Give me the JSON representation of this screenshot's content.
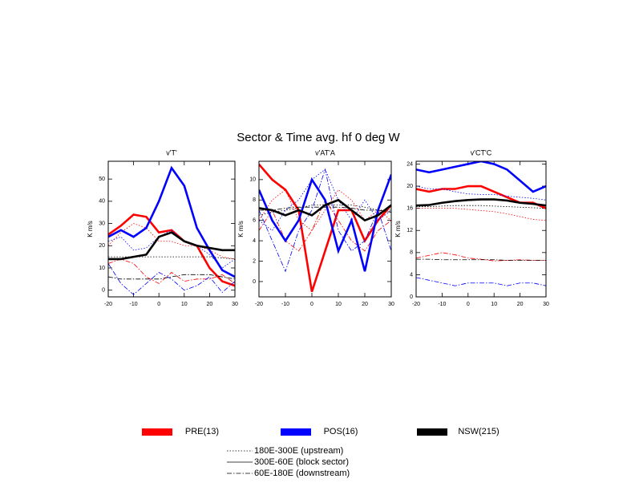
{
  "title": "Sector & Time avg. hf 0 deg W",
  "legend": {
    "groups": [
      {
        "name": "PRE(13)",
        "color": "#ff0000"
      },
      {
        "name": "POS(16)",
        "color": "#0000ff"
      },
      {
        "name": "NSW(215)",
        "color": "#000000"
      }
    ],
    "styles": [
      {
        "name": "180E-300E (upstream)",
        "dash": "dotted"
      },
      {
        "name": "300E-60E (block sector)",
        "dash": "solid"
      },
      {
        "name": "60E-180E (downstream)",
        "dash": "dashdot"
      }
    ]
  },
  "chart_data": [
    {
      "type": "line",
      "title": "v'T'",
      "ylabel": "K m/s",
      "x": [
        -20,
        -15,
        -10,
        -5,
        0,
        5,
        10,
        15,
        20,
        25,
        30
      ],
      "xlim": [
        -20,
        30
      ],
      "xticks": [
        -20,
        -10,
        0,
        10,
        20,
        30
      ],
      "ylim": [
        -3,
        58
      ],
      "yticks": [
        0,
        10,
        20,
        30,
        40,
        50
      ],
      "series": [
        {
          "name": "PRE(13)",
          "sector": "300E-60E (block sector)",
          "values": [
            25,
            29,
            34,
            33,
            26,
            27,
            22,
            20,
            10,
            4,
            2
          ]
        },
        {
          "name": "PRE(13)",
          "sector": "180E-300E (upstream)",
          "values": [
            20,
            26,
            30,
            28,
            22,
            22,
            20,
            20,
            18,
            15,
            14
          ]
        },
        {
          "name": "PRE(13)",
          "sector": "60E-180E (downstream)",
          "values": [
            12,
            14,
            12,
            6,
            3,
            8,
            4,
            5,
            5,
            7,
            3
          ]
        },
        {
          "name": "POS(16)",
          "sector": "300E-60E (block sector)",
          "values": [
            24,
            27,
            24,
            28,
            40,
            55,
            47,
            28,
            18,
            9,
            6
          ]
        },
        {
          "name": "POS(16)",
          "sector": "180E-300E (upstream)",
          "values": [
            22,
            24,
            18,
            19,
            24,
            27,
            22,
            20,
            16,
            10,
            14
          ]
        },
        {
          "name": "POS(16)",
          "sector": "60E-180E (downstream)",
          "values": [
            12,
            3,
            -2,
            3,
            8,
            5,
            0,
            2,
            6,
            -1,
            4
          ]
        },
        {
          "name": "NSW(215)",
          "sector": "300E-60E (block sector)",
          "values": [
            14,
            14,
            15,
            16,
            24,
            26,
            22,
            20,
            19,
            18,
            18
          ]
        },
        {
          "name": "NSW(215)",
          "sector": "180E-300E (upstream)",
          "values": [
            15,
            15,
            15,
            15,
            15,
            15,
            15,
            15,
            15,
            14.5,
            14
          ]
        },
        {
          "name": "NSW(215)",
          "sector": "60E-180E (downstream)",
          "values": [
            6,
            5,
            5,
            5,
            5,
            6,
            7,
            7,
            7,
            6,
            5
          ]
        }
      ]
    },
    {
      "type": "line",
      "title": "v'AT'A",
      "ylabel": "K m/s",
      "x": [
        -20,
        -15,
        -10,
        -5,
        0,
        5,
        10,
        15,
        20,
        25,
        30
      ],
      "xlim": [
        -20,
        30
      ],
      "xticks": [
        -20,
        -10,
        0,
        10,
        20,
        30
      ],
      "ylim": [
        -1.5,
        11.8
      ],
      "yticks": [
        0,
        2,
        4,
        6,
        8,
        10
      ],
      "series": [
        {
          "name": "PRE(13)",
          "sector": "300E-60E (block sector)",
          "values": [
            11.5,
            10,
            9,
            7,
            -1,
            3,
            7,
            7,
            4,
            6,
            7.5
          ]
        },
        {
          "name": "PRE(13)",
          "sector": "180E-300E (upstream)",
          "values": [
            6,
            8,
            9,
            6,
            5,
            7,
            9,
            8,
            6,
            7,
            6
          ]
        },
        {
          "name": "PRE(13)",
          "sector": "60E-180E (downstream)",
          "values": [
            5,
            7,
            4,
            3,
            5,
            8,
            6,
            4,
            3,
            5,
            6
          ]
        },
        {
          "name": "POS(16)",
          "sector": "300E-60E (block sector)",
          "values": [
            9,
            6,
            4,
            6,
            10,
            8,
            3,
            6,
            1,
            7,
            10.5
          ]
        },
        {
          "name": "POS(16)",
          "sector": "180E-300E (upstream)",
          "values": [
            6,
            5,
            7,
            8,
            10,
            11,
            8,
            6,
            8,
            6,
            7
          ]
        },
        {
          "name": "POS(16)",
          "sector": "60E-180E (downstream)",
          "values": [
            7,
            4,
            1,
            5,
            7,
            11,
            5,
            3,
            4,
            7,
            3
          ]
        },
        {
          "name": "NSW(215)",
          "sector": "300E-60E (block sector)",
          "values": [
            7.2,
            7,
            6.5,
            7,
            6.5,
            7.5,
            8,
            7,
            6,
            6.5,
            7.5
          ]
        },
        {
          "name": "NSW(215)",
          "sector": "180E-300E (upstream)",
          "values": [
            6.5,
            6.8,
            7,
            7.2,
            7.5,
            7.5,
            7.5,
            7.5,
            7.3,
            7,
            7
          ]
        },
        {
          "name": "NSW(215)",
          "sector": "60E-180E (downstream)",
          "values": [
            7,
            7,
            7.2,
            7.3,
            7.3,
            7.3,
            7.3,
            7.2,
            7,
            7,
            6.8
          ]
        }
      ]
    },
    {
      "type": "line",
      "title": "v'CT'C",
      "ylabel": "K m/s",
      "x": [
        -20,
        -15,
        -10,
        -5,
        0,
        5,
        10,
        15,
        20,
        25,
        30
      ],
      "xlim": [
        -20,
        30
      ],
      "xticks": [
        -20,
        -10,
        0,
        10,
        20,
        30
      ],
      "ylim": [
        0,
        24.5
      ],
      "yticks": [
        0,
        4,
        8,
        12,
        16,
        20,
        24
      ],
      "series": [
        {
          "name": "PRE(13)",
          "sector": "300E-60E (block sector)",
          "values": [
            19.5,
            19,
            19.5,
            19.5,
            20,
            20,
            19,
            18,
            17,
            17,
            16
          ]
        },
        {
          "name": "PRE(13)",
          "sector": "180E-300E (upstream)",
          "values": [
            16,
            16,
            16,
            16,
            15.8,
            15.6,
            15.4,
            15,
            14.5,
            14,
            13.8
          ]
        },
        {
          "name": "PRE(13)",
          "sector": "60E-180E (downstream)",
          "values": [
            7,
            7.5,
            8,
            7.6,
            7,
            6.8,
            6.5,
            6.6,
            6.7,
            6.6,
            6.6
          ]
        },
        {
          "name": "POS(16)",
          "sector": "300E-60E (block sector)",
          "values": [
            23,
            22.5,
            23,
            23.5,
            24,
            24.5,
            24,
            23,
            21,
            19,
            20
          ]
        },
        {
          "name": "POS(16)",
          "sector": "180E-300E (upstream)",
          "values": [
            20,
            19.5,
            19.5,
            19,
            18.6,
            18.5,
            18.5,
            18.2,
            18,
            17.8,
            17.5
          ]
        },
        {
          "name": "POS(16)",
          "sector": "60E-180E (downstream)",
          "values": [
            3.5,
            3,
            2.5,
            2,
            2.5,
            2.5,
            2.5,
            2,
            2.5,
            2.5,
            2
          ]
        },
        {
          "name": "NSW(215)",
          "sector": "300E-60E (block sector)",
          "values": [
            16.5,
            16.6,
            17,
            17.3,
            17.5,
            17.6,
            17.6,
            17.4,
            17,
            16.8,
            16.5
          ]
        },
        {
          "name": "NSW(215)",
          "sector": "180E-300E (upstream)",
          "values": [
            16.3,
            16.3,
            16.4,
            16.5,
            16.5,
            16.5,
            16.4,
            16.3,
            16.2,
            16.1,
            16
          ]
        },
        {
          "name": "NSW(215)",
          "sector": "60E-180E (downstream)",
          "values": [
            6.8,
            6.8,
            6.7,
            6.7,
            6.7,
            6.7,
            6.7,
            6.6,
            6.6,
            6.6,
            6.6
          ]
        }
      ]
    }
  ]
}
